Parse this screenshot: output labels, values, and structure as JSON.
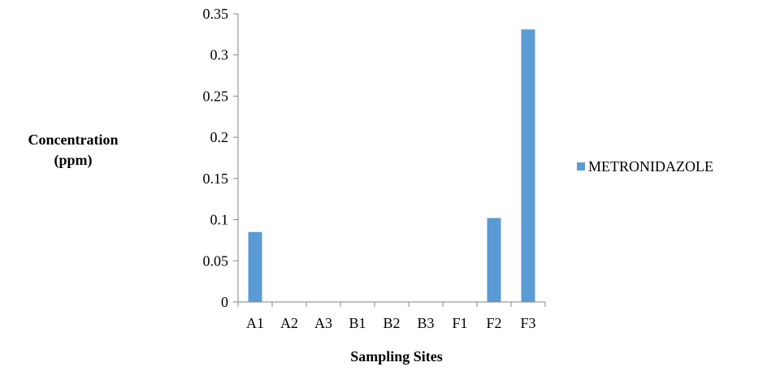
{
  "chart_data": {
    "type": "bar",
    "title": "",
    "xlabel": "Sampling Sites",
    "ylabel": [
      "Concentration",
      "(ppm)"
    ],
    "categories": [
      "A1",
      "A2",
      "A3",
      "B1",
      "B2",
      "B3",
      "F1",
      "F2",
      "F3"
    ],
    "series": [
      {
        "name": "METRONIDAZOLE",
        "color": "#5b9bd5",
        "values": [
          0.085,
          0,
          0,
          0,
          0,
          0,
          0,
          0.102,
          0.331
        ]
      }
    ],
    "yticks": [
      "0",
      "0.05",
      "0.1",
      "0.15",
      "0.2",
      "0.25",
      "0.3",
      "0.35"
    ],
    "ylim": [
      0,
      0.35
    ],
    "grid": false,
    "legend_position": "right"
  }
}
